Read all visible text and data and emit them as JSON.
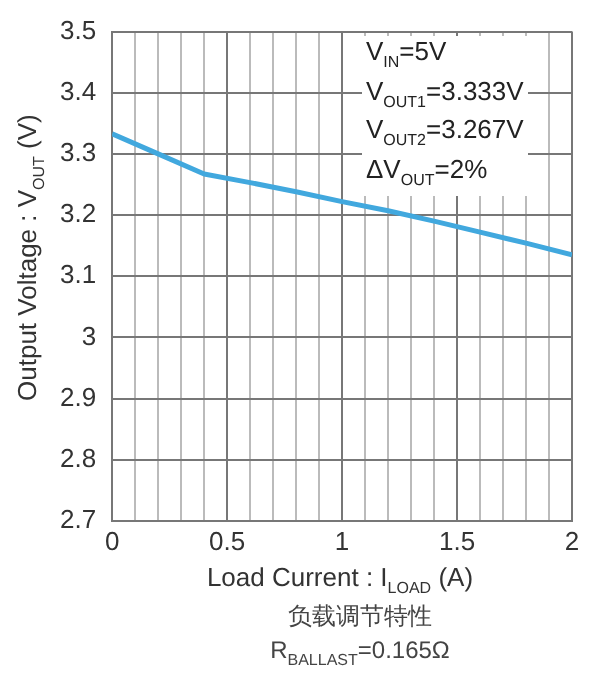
{
  "chart_data": {
    "type": "line",
    "xlabel": "Load Current : I$_{LOAD}$ (A)",
    "ylabel": "Output Voltage : V$_{OUT}$ (V)",
    "x": [
      0,
      0.2,
      0.4,
      0.6,
      0.8,
      1,
      1.2,
      1.4,
      1.6,
      1.8,
      2
    ],
    "series": [
      {
        "color": "#41a8de",
        "values": [
          3.333,
          3.3,
          3.267,
          3.253,
          3.238,
          3.222,
          3.207,
          3.19,
          3.172,
          3.154,
          3.135
        ]
      }
    ],
    "xlim": [
      0,
      2
    ],
    "xticks": [
      0,
      {
        "value": 0.1,
        "label": null
      },
      {
        "value": 0.2,
        "label": null
      },
      {
        "value": 0.3,
        "label": null
      },
      {
        "value": 0.4,
        "label": null
      },
      0.5,
      {
        "value": 0.6,
        "label": null
      },
      {
        "value": 0.7,
        "label": null
      },
      {
        "value": 0.8,
        "label": null
      },
      {
        "value": 0.9,
        "label": null
      },
      1,
      {
        "value": 1.1,
        "label": null
      },
      {
        "value": 1.2,
        "label": null
      },
      {
        "value": 1.3,
        "label": null
      },
      {
        "value": 1.4,
        "label": null
      },
      1.5,
      {
        "value": 1.6,
        "label": null
      },
      {
        "value": 1.7,
        "label": null
      },
      {
        "value": 1.8,
        "label": null
      },
      {
        "value": 1.9,
        "label": null
      },
      2
    ],
    "ylim": [
      2.7,
      3.5
    ],
    "yticks": [
      2.7,
      2.8,
      2.9,
      3,
      3.1,
      3.2,
      3.3,
      3.4,
      3.5
    ],
    "grid": true,
    "legend": false,
    "marker": "none",
    "line_style": "solid",
    "annotations": [
      "V$_{IN}$=5V",
      "V$_{OUT1}$=3.333V",
      "V$_{OUT2}$=3.267V",
      "ΔV$_{OUT}$=2%",
      "负载调节特性",
      "R$_{BALLAST}$=0.165Ω"
    ]
  }
}
